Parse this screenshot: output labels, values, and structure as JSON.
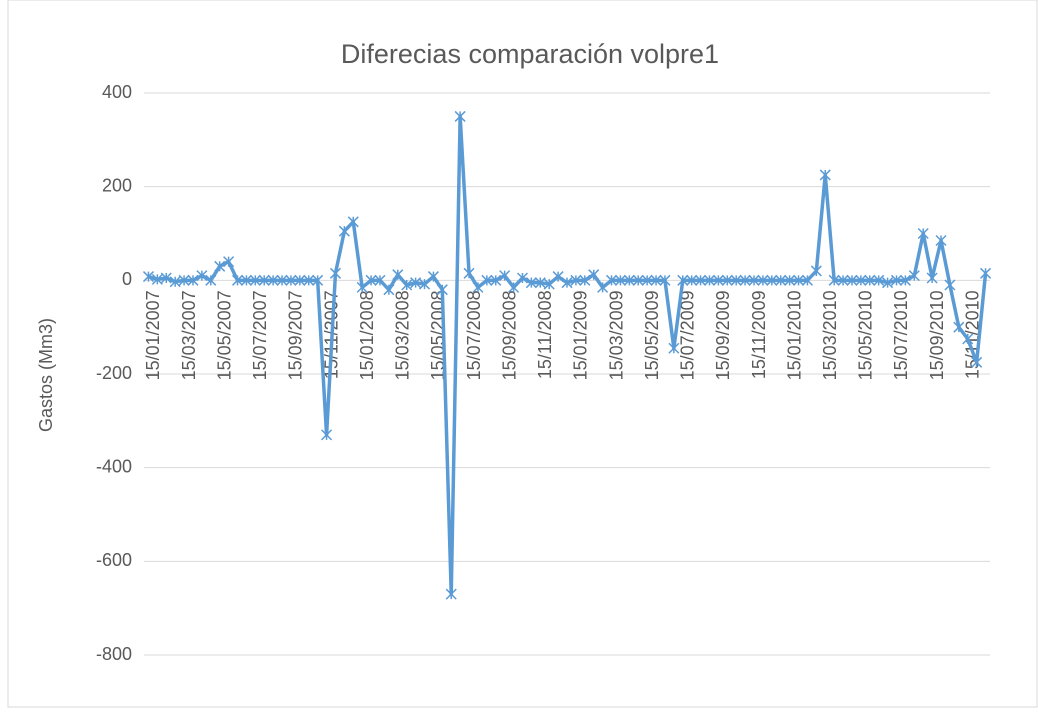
{
  "chart_data": {
    "type": "line",
    "title": "Diferecias comparación volpre1",
    "y_label": "Gastos (Mm3)",
    "categories": [
      "15/01/2007",
      null,
      null,
      null,
      "15/03/2007",
      null,
      null,
      null,
      "15/05/2007",
      null,
      null,
      null,
      "15/07/2007",
      null,
      null,
      null,
      "15/09/2007",
      null,
      null,
      null,
      "15/11/2007",
      null,
      null,
      null,
      "15/01/2008",
      null,
      null,
      null,
      "15/03/2008",
      null,
      null,
      null,
      "15/05/2008",
      null,
      null,
      null,
      "15/07/2008",
      null,
      null,
      null,
      "15/09/2008",
      null,
      null,
      null,
      "15/11/2008",
      null,
      null,
      null,
      "15/01/2009",
      null,
      null,
      null,
      "15/03/2009",
      null,
      null,
      null,
      "15/05/2009",
      null,
      null,
      null,
      "15/07/2009",
      null,
      null,
      null,
      "15/09/2009",
      null,
      null,
      null,
      "15/11/2009",
      null,
      null,
      null,
      "15/01/2010",
      null,
      null,
      null,
      "15/03/2010",
      null,
      null,
      null,
      "15/05/2010",
      null,
      null,
      null,
      "15/07/2010",
      null,
      null,
      null,
      "15/09/2010",
      null,
      null,
      null,
      "15/11/2010",
      null,
      null
    ],
    "series": [
      {
        "name": "volpre1",
        "color": "#5b9bd5",
        "values": [
          8,
          2,
          5,
          -3,
          0,
          0,
          10,
          0,
          30,
          40,
          0,
          0,
          0,
          0,
          0,
          0,
          0,
          0,
          0,
          0,
          -330,
          15,
          105,
          125,
          -15,
          0,
          0,
          -20,
          12,
          -10,
          -5,
          -8,
          8,
          -20,
          -670,
          350,
          15,
          -15,
          0,
          0,
          10,
          -15,
          5,
          -5,
          -5,
          -8,
          8,
          -5,
          0,
          0,
          12,
          -15,
          0,
          0,
          0,
          0,
          0,
          0,
          0,
          -145,
          0,
          0,
          0,
          0,
          0,
          0,
          0,
          0,
          0,
          0,
          0,
          0,
          0,
          0,
          0,
          20,
          225,
          0,
          0,
          0,
          0,
          0,
          0,
          -5,
          0,
          0,
          10,
          100,
          5,
          85,
          -10,
          -100,
          -125,
          -175,
          15
        ]
      }
    ],
    "ylim": [
      -850,
      420
    ],
    "yticks": [
      400,
      200,
      0,
      -200,
      -400,
      -600,
      -800
    ],
    "grid": true
  }
}
